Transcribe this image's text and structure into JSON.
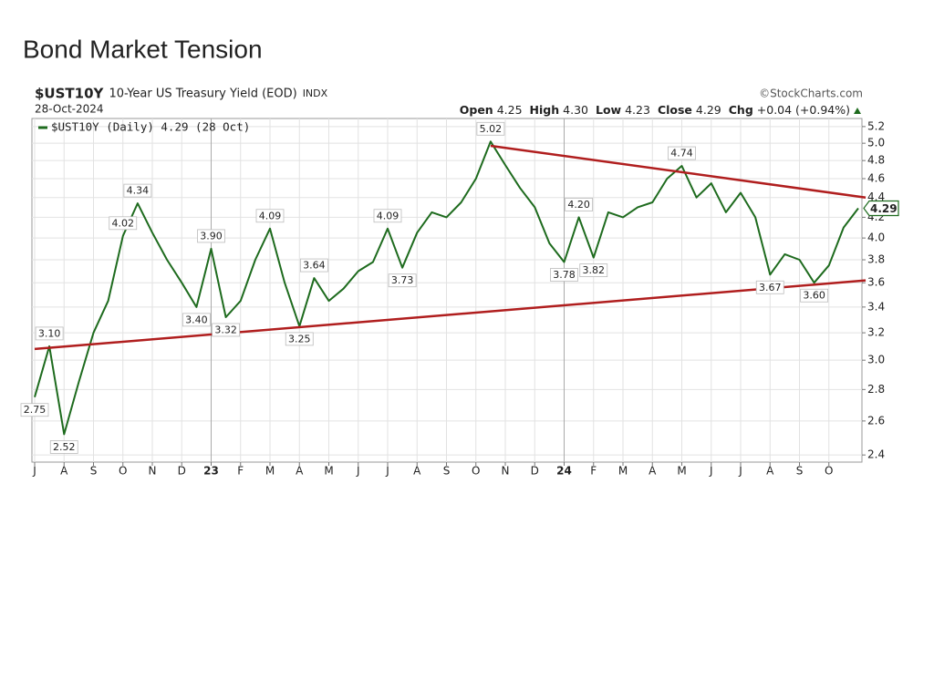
{
  "title": "Bond Market Tension",
  "chart_data": {
    "type": "line",
    "symbol": "$UST10Y",
    "subtitle": "10-Year US Treasury Yield (EOD)",
    "exchange": "INDX",
    "date": "28-Oct-2024",
    "source": "©StockCharts.com",
    "quote": [
      {
        "label": "Open",
        "value": "4.25"
      },
      {
        "label": "High",
        "value": "4.30"
      },
      {
        "label": "Low",
        "value": "4.23"
      },
      {
        "label": "Close",
        "value": "4.29"
      },
      {
        "label": "Chg",
        "value": "+0.04 (+0.94%)"
      }
    ],
    "categories": [
      "J",
      null,
      "A",
      null,
      "S",
      null,
      "O",
      null,
      "N",
      null,
      "D",
      null,
      "23",
      null,
      "F",
      null,
      "M",
      null,
      "A",
      null,
      "M",
      null,
      "J",
      null,
      "J",
      null,
      "A",
      null,
      "S",
      null,
      "O",
      null,
      "N",
      null,
      "D",
      null,
      "24",
      null,
      "F",
      null,
      "M",
      null,
      "A",
      null,
      "M",
      null,
      "J",
      null,
      "J",
      null,
      "A",
      null,
      "S",
      null,
      "O",
      null,
      null
    ],
    "series": [
      {
        "name": "$UST10Y (Daily) 4.29 (28 Oct)",
        "color": "#1e6b1e",
        "values": [
          2.75,
          3.1,
          2.52,
          2.85,
          3.2,
          3.45,
          4.02,
          4.34,
          4.05,
          3.8,
          3.6,
          3.4,
          3.9,
          3.32,
          3.45,
          3.8,
          4.09,
          3.6,
          3.25,
          3.64,
          3.45,
          3.55,
          3.7,
          3.78,
          4.09,
          3.73,
          4.05,
          4.25,
          4.2,
          4.35,
          4.6,
          5.02,
          4.75,
          4.5,
          4.3,
          3.95,
          3.78,
          4.2,
          3.82,
          4.25,
          4.2,
          4.3,
          4.35,
          4.6,
          4.74,
          4.4,
          4.55,
          4.25,
          4.45,
          4.2,
          3.67,
          3.85,
          3.8,
          3.6,
          3.75,
          4.1,
          4.29
        ],
        "value_labels": [
          "2.75",
          "3.10",
          "2.52",
          null,
          null,
          null,
          "4.02",
          "4.34",
          null,
          null,
          null,
          "3.40",
          "3.90",
          "3.32",
          null,
          null,
          "4.09",
          null,
          "3.25",
          "3.64",
          null,
          null,
          null,
          null,
          "4.09",
          "3.73",
          null,
          null,
          null,
          null,
          null,
          "5.02",
          null,
          null,
          null,
          null,
          "3.78",
          "4.20",
          "3.82",
          null,
          null,
          null,
          null,
          null,
          "4.74",
          null,
          null,
          null,
          null,
          null,
          "3.67",
          null,
          null,
          "3.60",
          null,
          null,
          "4.29"
        ]
      }
    ],
    "trendlines": [
      {
        "color": "#b01e1e",
        "start": [
          0,
          3.08
        ],
        "end": [
          56.5,
          3.62
        ]
      },
      {
        "color": "#b01e1e",
        "start": [
          31,
          4.97
        ],
        "end": [
          56.5,
          4.4
        ]
      }
    ],
    "log_scale": true,
    "grid": true,
    "ylim": [
      2.36,
      5.3
    ],
    "yticks": [
      2.4,
      2.6,
      2.8,
      {
        "value": 3,
        "label": "3.0"
      },
      3.2,
      3.4,
      3.6,
      3.8,
      {
        "value": 4,
        "label": "4.0"
      },
      4.2,
      4.4,
      4.6,
      4.8,
      {
        "value": 5,
        "label": "5.0"
      },
      5.2
    ]
  }
}
